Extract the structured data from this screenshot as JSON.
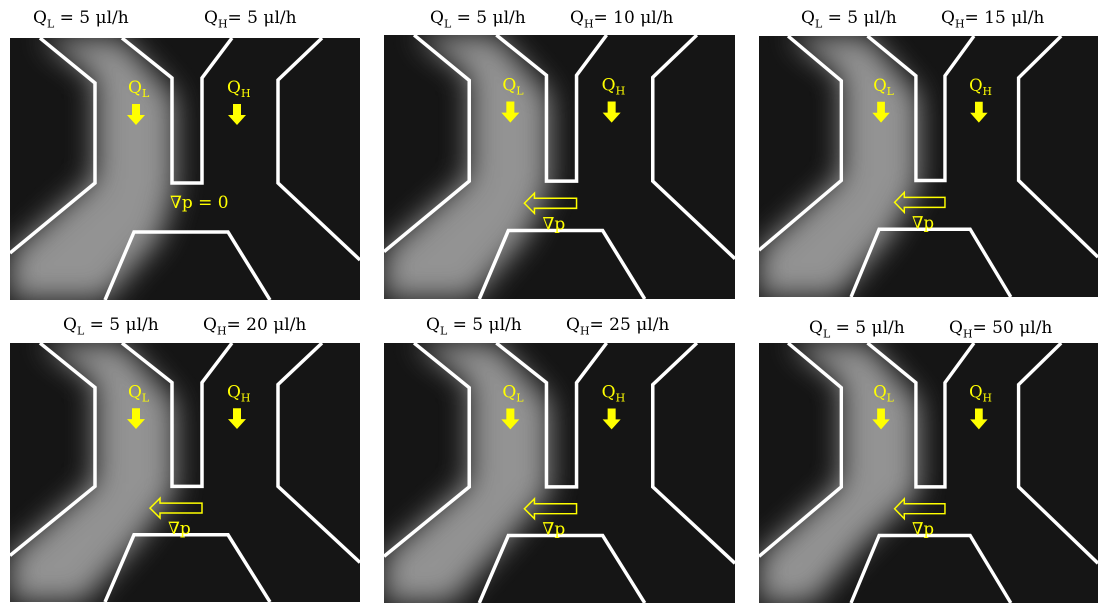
{
  "panels": [
    {
      "left_label": {
        "q": "Q",
        "sub": "L",
        "rest": " = 5 μl/h"
      },
      "right_label": {
        "q": "Q",
        "sub": "H",
        "rest": "= 5 μl/h"
      },
      "gradient_label": "∇p = 0",
      "show_arrow": false
    },
    {
      "left_label": {
        "q": "Q",
        "sub": "L",
        "rest": " = 5 μl/h"
      },
      "right_label": {
        "q": "Q",
        "sub": "H",
        "rest": "= 10 μl/h"
      },
      "gradient_label": "∇p",
      "show_arrow": true
    },
    {
      "left_label": {
        "q": "Q",
        "sub": "L",
        "rest": " = 5 μl/h"
      },
      "right_label": {
        "q": "Q",
        "sub": "H",
        "rest": "= 15 μl/h"
      },
      "gradient_label": "∇p",
      "show_arrow": true
    },
    {
      "left_label": {
        "q": "Q",
        "sub": "L",
        "rest": " = 5 μl/h"
      },
      "right_label": {
        "q": "Q",
        "sub": "H",
        "rest": "= 20 μl/h"
      },
      "gradient_label": "∇p",
      "show_arrow": true
    },
    {
      "left_label": {
        "q": "Q",
        "sub": "L",
        "rest": " = 5 μl/h"
      },
      "right_label": {
        "q": "Q",
        "sub": "H",
        "rest": "= 25 μl/h"
      },
      "gradient_label": "∇p",
      "show_arrow": true
    },
    {
      "left_label": {
        "q": "Q",
        "sub": "L",
        "rest": " = 5 μl/h"
      },
      "right_label": {
        "q": "Q",
        "sub": "H",
        "rest": "= 50 μl/h"
      },
      "gradient_label": "∇p",
      "show_arrow": true
    }
  ],
  "inlet_labels": {
    "left": {
      "q": "Q",
      "sub": "L"
    },
    "right": {
      "q": "Q",
      "sub": "H"
    }
  },
  "colors": {
    "annotation": "#ffff00",
    "channel_wall": "#ffffff",
    "background_dark": "#151515",
    "fluorescence": "#9a9a9a"
  }
}
